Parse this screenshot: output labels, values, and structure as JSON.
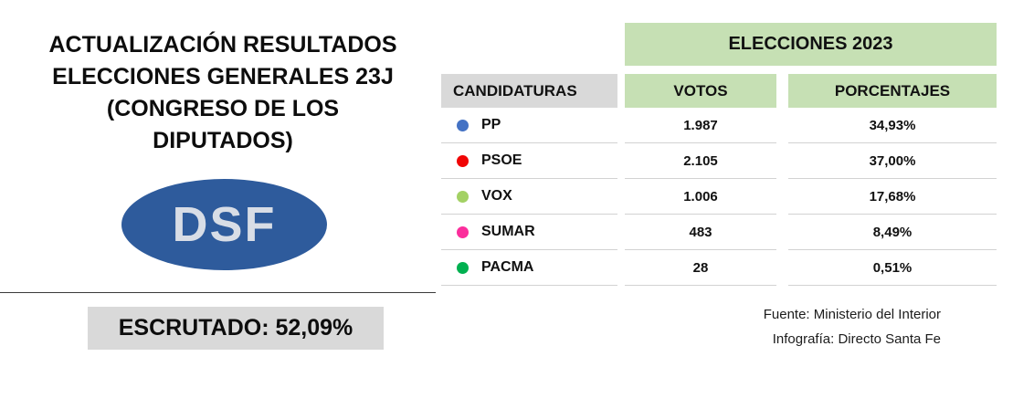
{
  "colors": {
    "logo_blue": "#2e5b9c",
    "logo_text_gray": "#d8dde6",
    "header_green": "#c6e0b4",
    "header_gray": "#d9d9d9",
    "escrutado_gray": "#d9d9d9",
    "row_separator_gray": "#d2d2d2"
  },
  "left": {
    "title_lines": [
      "ACTUALIZACIÓN RESULTADOS",
      "ELECCIONES GENERALES 23J",
      "(CONGRESO DE LOS",
      "DIPUTADOS)"
    ],
    "logo_text": "DSF",
    "escrutado": "ESCRUTADO: 52,09%"
  },
  "table": {
    "title": "ELECCIONES 2023",
    "columns": [
      "CANDIDATURAS",
      "VOTOS",
      "PORCENTAJES"
    ],
    "rows": [
      {
        "party": "PP",
        "dot_color": "#4472c4",
        "votes": "1.987",
        "pct": "34,93%"
      },
      {
        "party": "PSOE",
        "dot_color": "#f00505",
        "votes": "2.105",
        "pct": "37,00%"
      },
      {
        "party": "VOX",
        "dot_color": "#a3d164",
        "votes": "1.006",
        "pct": "17,68%"
      },
      {
        "party": "SUMAR",
        "dot_color": "#fb2e9c",
        "votes": "483",
        "pct": "8,49%"
      },
      {
        "party": "PACMA",
        "dot_color": "#00b050",
        "votes": "28",
        "pct": "0,51%"
      }
    ]
  },
  "footer": {
    "source": "Fuente: Ministerio del Interior",
    "credit": "Infografía: Directo Santa Fe"
  },
  "chart_data": {
    "type": "table",
    "title": "ELECCIONES 2023",
    "subtitle": "ACTUALIZACIÓN RESULTADOS ELECCIONES GENERALES 23J (CONGRESO DE LOS DIPUTADOS)",
    "escrutado_percent": 52.09,
    "columns": [
      "CANDIDATURAS",
      "VOTOS",
      "PORCENTAJES"
    ],
    "rows": [
      {
        "candidatura": "PP",
        "votos": 1987,
        "porcentaje": 34.93
      },
      {
        "candidatura": "PSOE",
        "votos": 2105,
        "porcentaje": 37.0
      },
      {
        "candidatura": "VOX",
        "votos": 1006,
        "porcentaje": 17.68
      },
      {
        "candidatura": "SUMAR",
        "votos": 483,
        "porcentaje": 8.49
      },
      {
        "candidatura": "PACMA",
        "votos": 28,
        "porcentaje": 0.51
      }
    ],
    "source": "Fuente: Ministerio del Interior",
    "credit": "Infografía: Directo Santa Fe"
  }
}
